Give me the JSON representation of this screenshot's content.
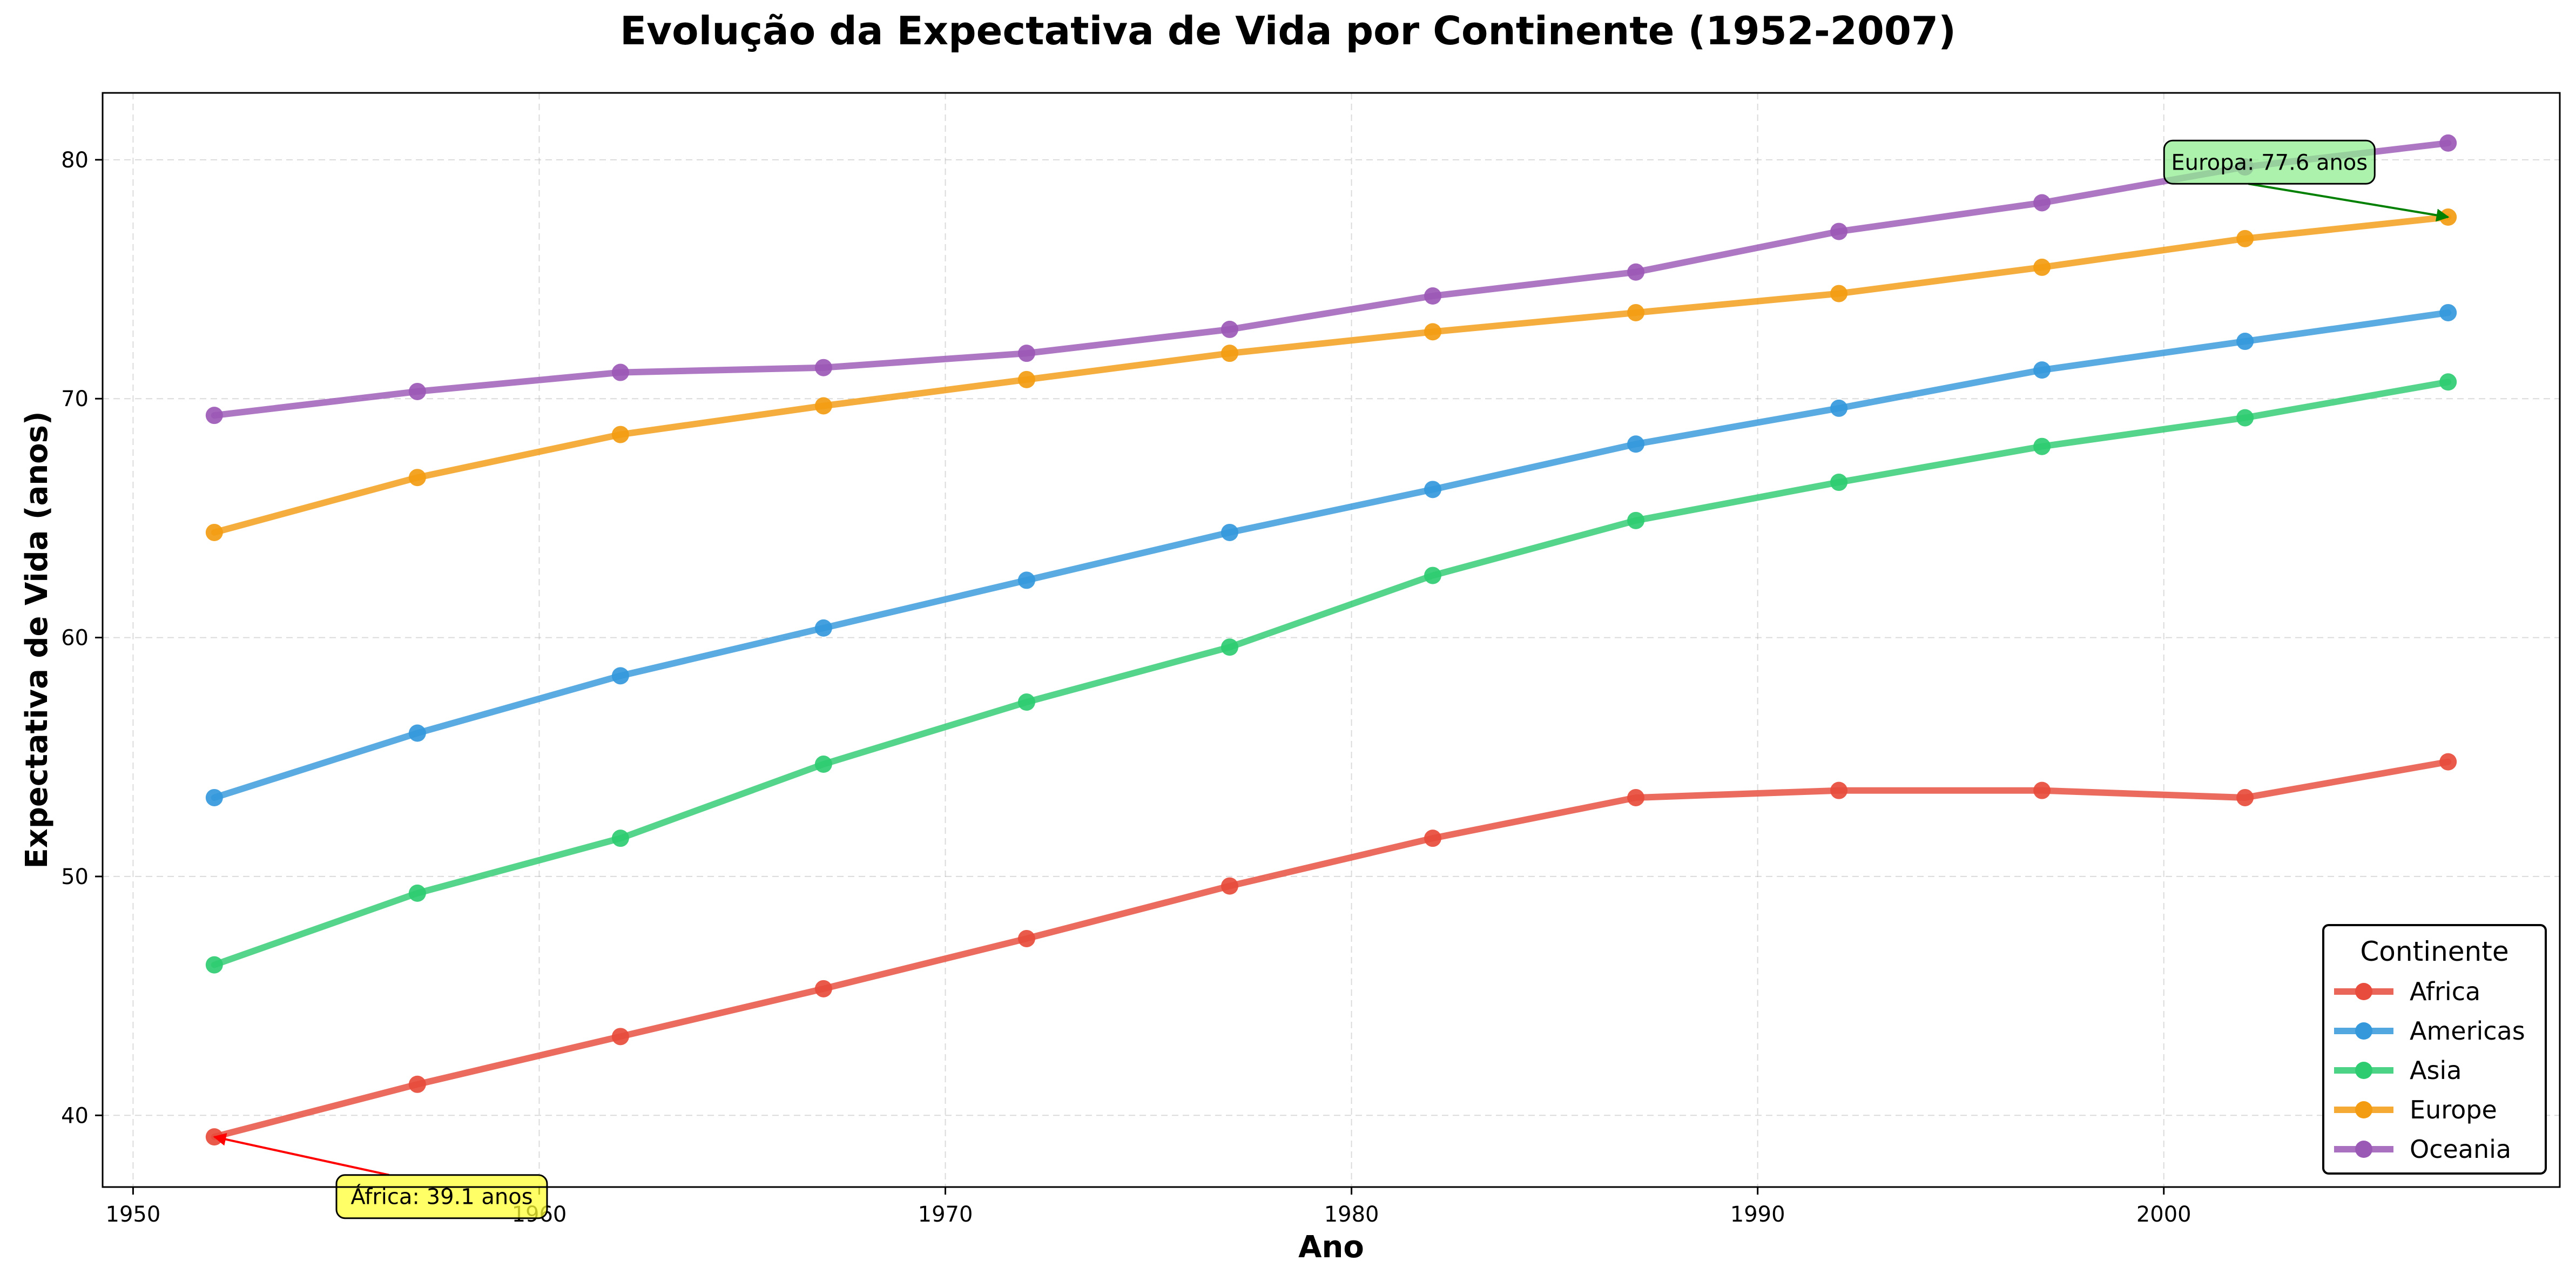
{
  "chart_data": {
    "type": "line",
    "title": "Evolução da Expectativa de Vida por Continente (1952-2007)",
    "xlabel": "Ano",
    "ylabel": "Expectativa de Vida (anos)",
    "x": [
      1952,
      1957,
      1962,
      1967,
      1972,
      1977,
      1982,
      1987,
      1992,
      1997,
      2002,
      2007
    ],
    "xlim": [
      1949.25,
      2009.75
    ],
    "ylim": [
      37.0,
      82.8
    ],
    "xticks": [
      1950,
      1960,
      1970,
      1980,
      1990,
      2000
    ],
    "yticks": [
      40,
      50,
      60,
      70,
      80
    ],
    "grid": true,
    "legend": {
      "title": "Continente",
      "placement": "lower-right"
    },
    "series": [
      {
        "name": "Africa",
        "color": "#e74c3c",
        "values": [
          39.1,
          41.3,
          43.3,
          45.3,
          47.4,
          49.6,
          51.6,
          53.3,
          53.6,
          53.6,
          53.3,
          54.8
        ]
      },
      {
        "name": "Americas",
        "color": "#3498db",
        "values": [
          53.3,
          56.0,
          58.4,
          60.4,
          62.4,
          64.4,
          66.2,
          68.1,
          69.6,
          71.2,
          72.4,
          73.6
        ]
      },
      {
        "name": "Asia",
        "color": "#2ecc71",
        "values": [
          46.3,
          49.3,
          51.6,
          54.7,
          57.3,
          59.6,
          62.6,
          64.9,
          66.5,
          68.0,
          69.2,
          70.7
        ]
      },
      {
        "name": "Europe",
        "color": "#f39c12",
        "values": [
          64.4,
          66.7,
          68.5,
          69.7,
          70.8,
          71.9,
          72.8,
          73.6,
          74.4,
          75.5,
          76.7,
          77.6
        ]
      },
      {
        "name": "Oceania",
        "color": "#9b59b6",
        "values": [
          69.3,
          70.3,
          71.1,
          71.3,
          71.9,
          72.9,
          74.3,
          75.3,
          77.0,
          78.2,
          79.7,
          80.7
        ]
      }
    ],
    "annotations": [
      {
        "text": "África: 39.1 anos",
        "x": 1952,
        "y": 39.1,
        "text_x": 1957.6,
        "text_y": 36.6,
        "box_color": "#ffff33",
        "arrow_color": "#ff0000"
      },
      {
        "text": "Europa: 77.6 anos",
        "x": 2007,
        "y": 77.6,
        "text_x": 2002.6,
        "text_y": 79.9,
        "box_color": "#90ee90",
        "arrow_color": "#008000"
      }
    ]
  }
}
